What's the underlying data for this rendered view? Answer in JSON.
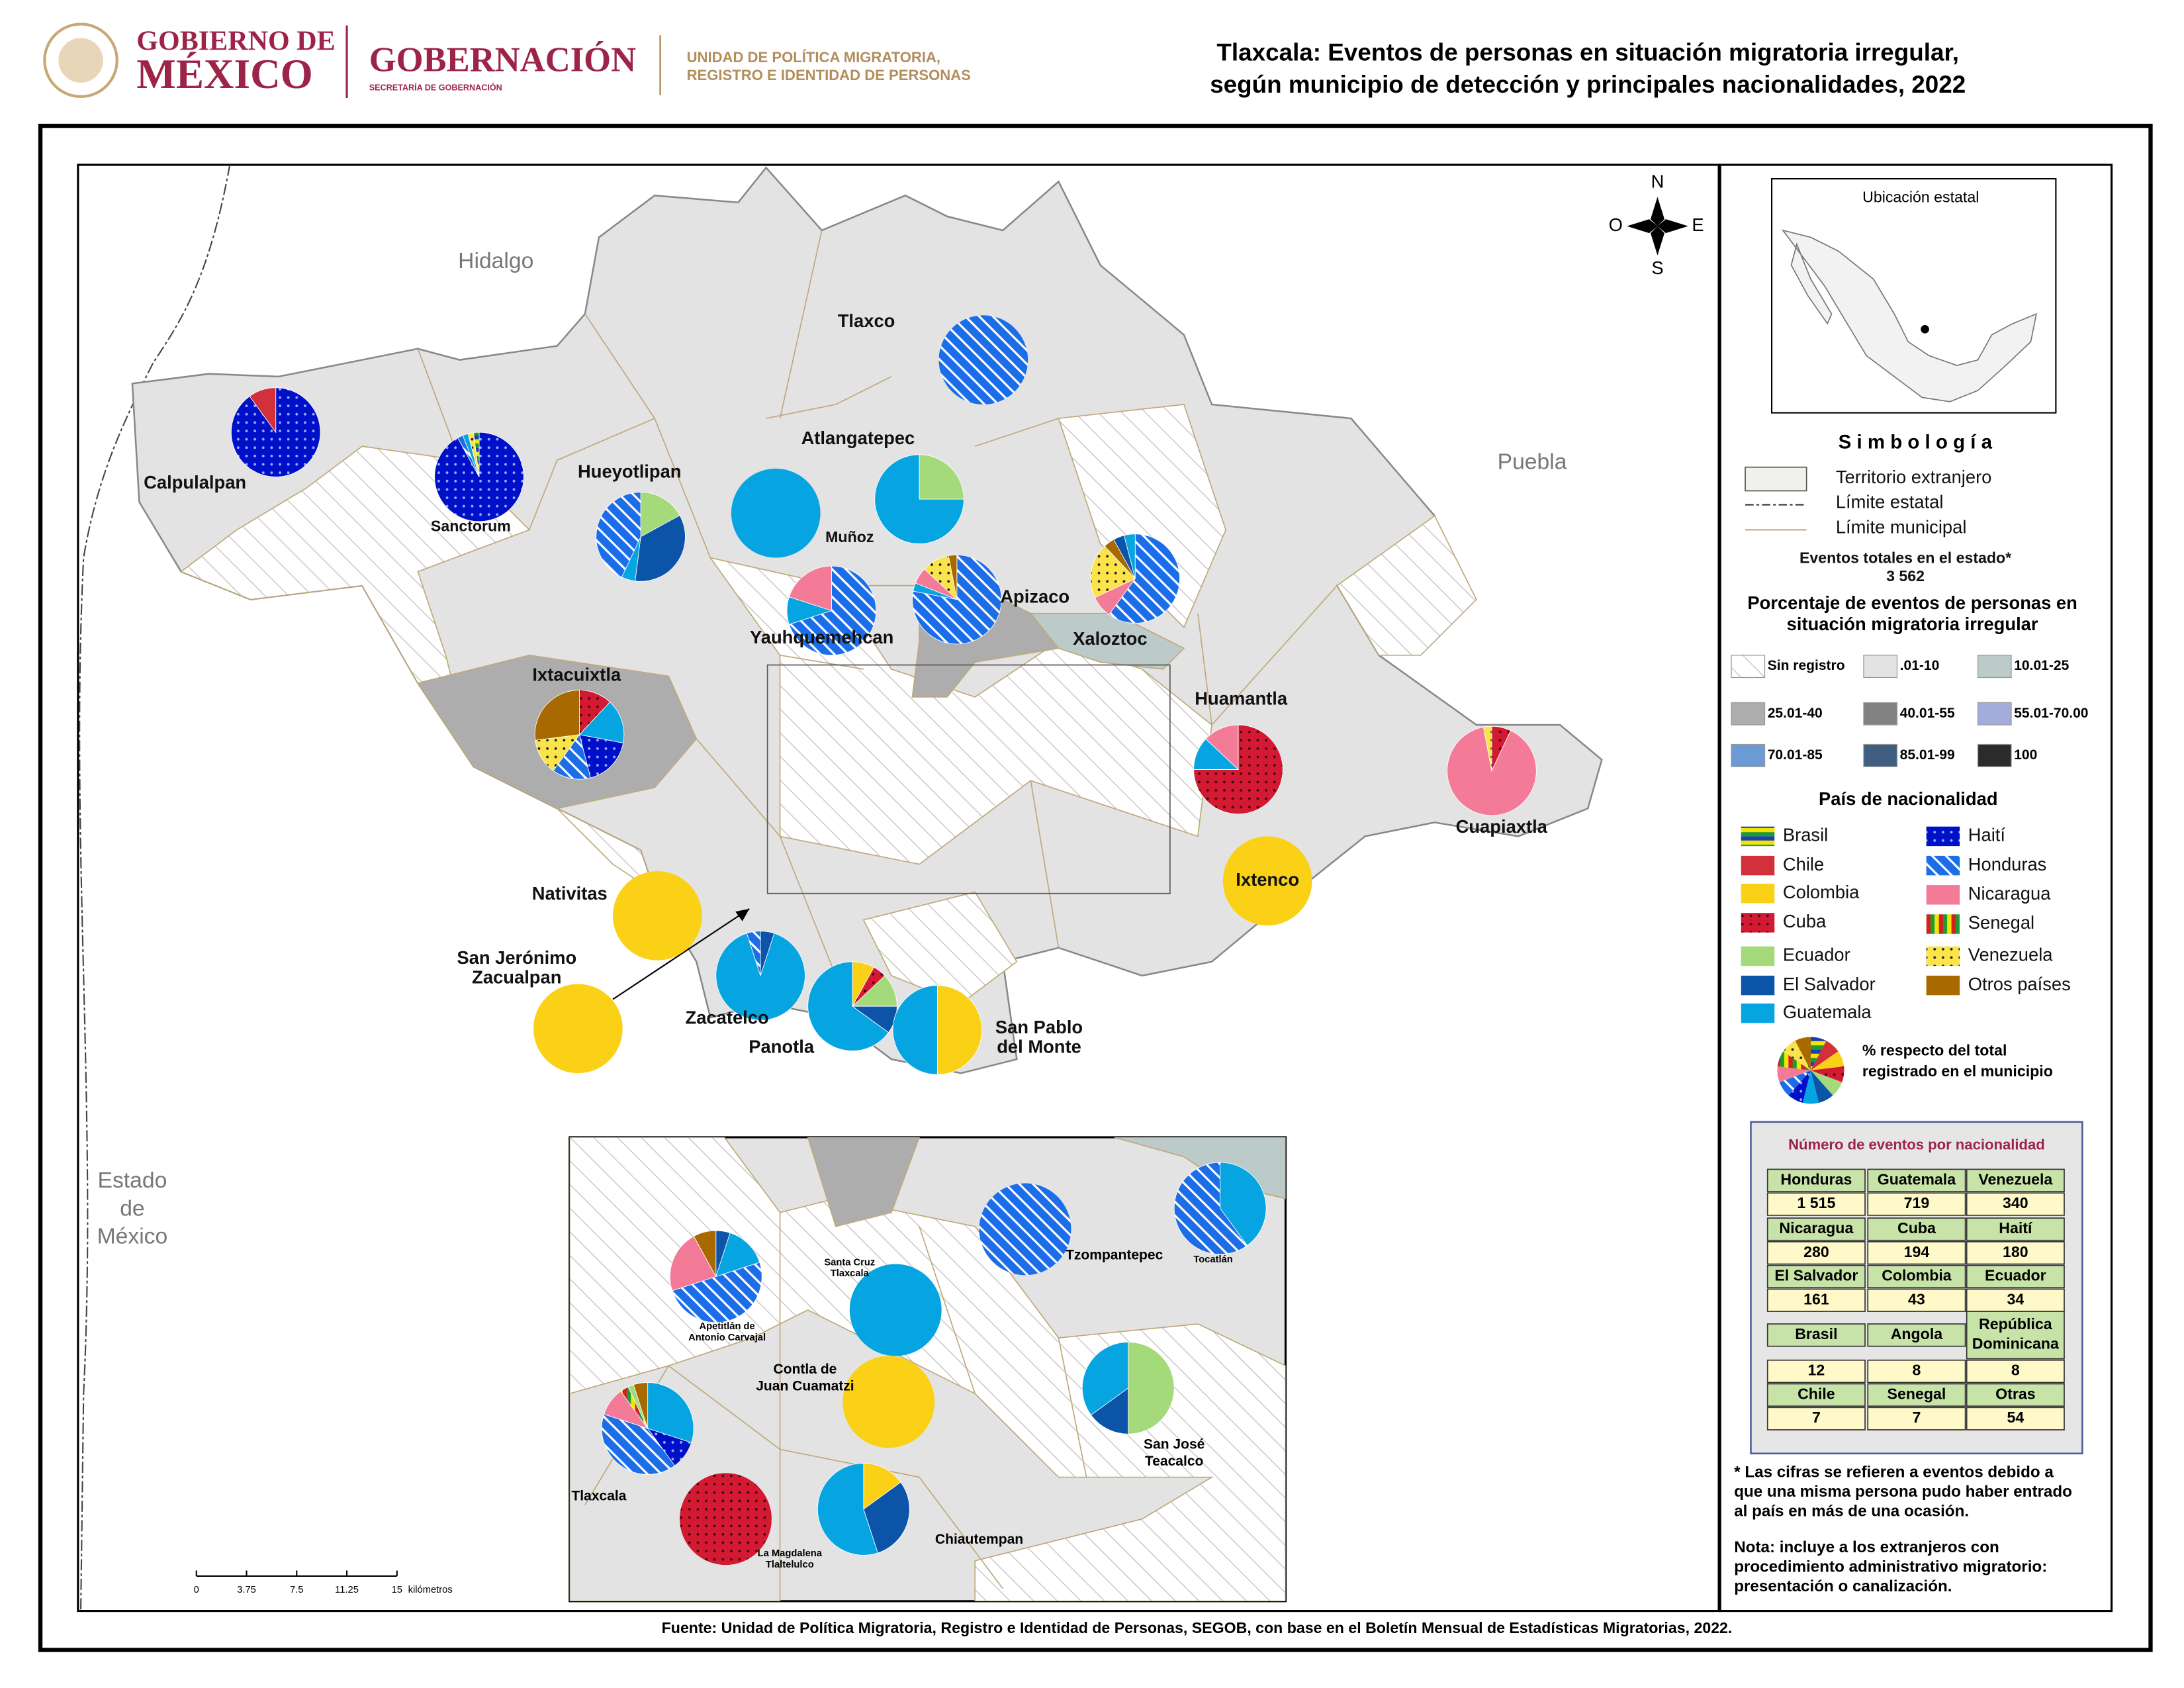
{
  "header": {
    "gov_line1": "GOBIERNO DE",
    "gov_line2": "MÉXICO",
    "ministry": "GOBERNACIÓN",
    "ministry_sub": "SECRETARÍA DE GOBERNACIÓN",
    "unit_lines": [
      "UNIDAD DE POLÍTICA MIGRATORIA,",
      "REGISTRO E IDENTIDAD DE PERSONAS"
    ],
    "title_lines": [
      "Tlaxcala: Eventos de personas en situación migratoria irregular,",
      "según municipio de detección y principales nacionalidades, 2022"
    ]
  },
  "map": {
    "states": [
      "Hidalgo",
      "Puebla",
      [
        "Estado",
        "de",
        "México"
      ]
    ],
    "compass": {
      "n": "N",
      "s": "S",
      "e": "E",
      "o": "O"
    },
    "scale_bar": {
      "ticks": [
        0,
        3.75,
        7.5,
        11.25,
        15
      ],
      "unit": "kilómetros"
    },
    "municipalities": [
      {
        "name": "Calpulalpan",
        "slices": [
          {
            "nationality": "Haití",
            "value": 90
          },
          {
            "nationality": "Chile",
            "value": 10
          }
        ]
      },
      {
        "name": "Sanctorum",
        "slices": [
          {
            "nationality": "Haití",
            "value": 92
          },
          {
            "nationality": "Honduras",
            "value": 2
          },
          {
            "nationality": "Guatemala",
            "value": 2
          },
          {
            "nationality": "Venezuela",
            "value": 2
          },
          {
            "nationality": "Brasil",
            "value": 2
          }
        ]
      },
      {
        "name": "Hueyotlipan",
        "slices": [
          {
            "nationality": "Ecuador",
            "value": 17
          },
          {
            "nationality": "El Salvador",
            "value": 35
          },
          {
            "nationality": "Guatemala",
            "value": 5
          },
          {
            "nationality": "Honduras",
            "value": 43
          }
        ]
      },
      {
        "name": "Tlaxco",
        "slices": [
          {
            "nationality": "Honduras",
            "value": 100
          }
        ]
      },
      {
        "name": "Atlangatepec",
        "slices": [
          {
            "nationality": "Ecuador",
            "value": 25
          },
          {
            "nationality": "Guatemala",
            "value": 75
          }
        ]
      },
      {
        "name": "Muñoz",
        "slices": [
          {
            "nationality": "Guatemala",
            "value": 100
          }
        ]
      },
      {
        "name": "Yauhquemehcan",
        "slices": [
          {
            "nationality": "Honduras",
            "value": 70
          },
          {
            "nationality": "Guatemala",
            "value": 10
          },
          {
            "nationality": "Nicaragua",
            "value": 20
          }
        ]
      },
      {
        "name": "Apizaco",
        "slices": [
          {
            "nationality": "Honduras",
            "value": 78
          },
          {
            "nationality": "Guatemala",
            "value": 3
          },
          {
            "nationality": "Nicaragua",
            "value": 6
          },
          {
            "nationality": "Venezuela",
            "value": 10
          },
          {
            "nationality": "Otros países",
            "value": 3
          }
        ]
      },
      {
        "name": "Xaloztoc",
        "slices": [
          {
            "nationality": "Honduras",
            "value": 60
          },
          {
            "nationality": "Nicaragua",
            "value": 8
          },
          {
            "nationality": "Venezuela",
            "value": 20
          },
          {
            "nationality": "Otros países",
            "value": 4
          },
          {
            "nationality": "El Salvador",
            "value": 4
          },
          {
            "nationality": "Guatemala",
            "value": 4
          }
        ]
      },
      {
        "name": "Ixtacuixtla",
        "slices": [
          {
            "nationality": "Cuba",
            "value": 12
          },
          {
            "nationality": "Guatemala",
            "value": 16
          },
          {
            "nationality": "Haití",
            "value": 18
          },
          {
            "nationality": "Honduras",
            "value": 14
          },
          {
            "nationality": "Venezuela",
            "value": 13
          },
          {
            "nationality": "Otros países",
            "value": 27
          }
        ]
      },
      {
        "name": "Huamantla",
        "slices": [
          {
            "nationality": "Cuba",
            "value": 75
          },
          {
            "nationality": "Guatemala",
            "value": 12
          },
          {
            "nationality": "Nicaragua",
            "value": 13
          }
        ]
      },
      {
        "name": "Cuapiaxtla",
        "slices": [
          {
            "nationality": "Cuba",
            "value": 7
          },
          {
            "nationality": "Nicaragua",
            "value": 90
          },
          {
            "nationality": "Venezuela",
            "value": 3
          }
        ]
      },
      {
        "name": "Ixtenco",
        "slices": [
          {
            "nationality": "Colombia",
            "value": 100
          }
        ]
      },
      {
        "name": "Nativitas",
        "slices": [
          {
            "nationality": "Colombia",
            "value": 100
          }
        ]
      },
      {
        "name": [
          "San Jerónimo",
          "Zacualpan"
        ],
        "slices": [
          {
            "nationality": "Colombia",
            "value": 100
          }
        ]
      },
      {
        "name": "Zacatelco",
        "slices": [
          {
            "nationality": "El Salvador",
            "value": 5
          },
          {
            "nationality": "Guatemala",
            "value": 90
          },
          {
            "nationality": "Honduras",
            "value": 5
          }
        ]
      },
      {
        "name": "Panotla",
        "slices": [
          {
            "nationality": "Colombia",
            "value": 8
          },
          {
            "nationality": "Cuba",
            "value": 5
          },
          {
            "nationality": "Ecuador",
            "value": 12
          },
          {
            "nationality": "El Salvador",
            "value": 10
          },
          {
            "nationality": "Guatemala",
            "value": 65
          }
        ]
      },
      {
        "name": [
          "San Pablo",
          "del Monte"
        ],
        "slices": [
          {
            "nationality": "Colombia",
            "value": 50
          },
          {
            "nationality": "Guatemala",
            "value": 50
          }
        ]
      }
    ],
    "inset_municipalities": [
      {
        "name": [
          "Apetitlán de",
          "Antonio Carvajal"
        ],
        "slices": [
          {
            "nationality": "El Salvador",
            "value": 5
          },
          {
            "nationality": "Guatemala",
            "value": 15
          },
          {
            "nationality": "Honduras",
            "value": 50
          },
          {
            "nationality": "Nicaragua",
            "value": 22
          },
          {
            "nationality": "Otros países",
            "value": 8
          }
        ]
      },
      {
        "name": [
          "Santa Cruz",
          "Tlaxcala"
        ],
        "slices": [
          {
            "nationality": "Guatemala",
            "value": 100
          }
        ]
      },
      {
        "name": "Tzompantepec",
        "slices": [
          {
            "nationality": "Honduras",
            "value": 100
          }
        ]
      },
      {
        "name": "Tocatlán",
        "slices": [
          {
            "nationality": "Guatemala",
            "value": 40
          },
          {
            "nationality": "Honduras",
            "value": 60
          }
        ]
      },
      {
        "name": [
          "Contla de",
          "Juan Cuamatzi"
        ],
        "slices": [
          {
            "nationality": "Colombia",
            "value": 100
          }
        ]
      },
      {
        "name": [
          "San José",
          "Teacalco"
        ],
        "slices": [
          {
            "nationality": "Ecuador",
            "value": 50
          },
          {
            "nationality": "El Salvador",
            "value": 15
          },
          {
            "nationality": "Guatemala",
            "value": 35
          }
        ]
      },
      {
        "name": "Tlaxcala",
        "slices": [
          {
            "nationality": "Guatemala",
            "value": 30
          },
          {
            "nationality": "Haití",
            "value": 10
          },
          {
            "nationality": "Honduras",
            "value": 40
          },
          {
            "nationality": "Nicaragua",
            "value": 10
          },
          {
            "nationality": "Senegal",
            "value": 3
          },
          {
            "nationality": "Ecuador",
            "value": 2
          },
          {
            "nationality": "Otros países",
            "value": 5
          }
        ]
      },
      {
        "name": [
          "La Magdalena",
          "Tlaltelulco"
        ],
        "slices": [
          {
            "nationality": "Cuba",
            "value": 100
          }
        ]
      },
      {
        "name": "Chiautempan",
        "slices": [
          {
            "nationality": "Colombia",
            "value": 15
          },
          {
            "nationality": "El Salvador",
            "value": 30
          },
          {
            "nationality": "Guatemala",
            "value": 55
          }
        ]
      }
    ]
  },
  "legend": {
    "location_title": "Ubicación estatal",
    "symbology_title": "S i m b o l o g í a",
    "symbols": [
      "Territorio extranjero",
      "Límite estatal",
      "Límite municipal"
    ],
    "total_label": "Eventos totales en el estado*",
    "total_value": "3 562",
    "percent_title": [
      "Porcentaje de eventos de personas en",
      "situación migratoria irregular"
    ],
    "classes": [
      {
        "label": "Sin registro",
        "color": "#ffffff",
        "pattern": "hatch"
      },
      {
        "label": ".01-10",
        "color": "#e3e3e3"
      },
      {
        "label": "10.01-25",
        "color": "#bccaca"
      },
      {
        "label": "25.01-40",
        "color": "#adadad"
      },
      {
        "label": "40.01-55",
        "color": "#828282"
      },
      {
        "label": "55.01-70.00",
        "color": "#a4acdc"
      },
      {
        "label": "70.01-85",
        "color": "#6b9ad4"
      },
      {
        "label": "85.01-99",
        "color": "#3f5e80"
      },
      {
        "label": "100",
        "color": "#2b2b2b"
      }
    ],
    "nationality_title": "País de nacionalidad",
    "nationalities": [
      {
        "name": "Brasil",
        "color": "#f2e600",
        "pattern": "hbands",
        "colors": [
          "#f2e600",
          "#1f9a2d",
          "#1b3fae"
        ]
      },
      {
        "name": "Chile",
        "color": "#d2303a"
      },
      {
        "name": "Colombia",
        "color": "#fbd118"
      },
      {
        "name": "Cuba",
        "color": "#d41a32",
        "pattern": "dots",
        "mark_color": "#3a0a10"
      },
      {
        "name": "Ecuador",
        "color": "#a4da7a"
      },
      {
        "name": "El Salvador",
        "color": "#0b54a8"
      },
      {
        "name": "Guatemala",
        "color": "#06a5e2"
      },
      {
        "name": "Haití",
        "color": "#0010c8",
        "pattern": "dots",
        "mark_color": "#9ab0ff"
      },
      {
        "name": "Honduras",
        "color": "#1c6de8",
        "pattern": "stripes",
        "mark_color": "#ffffff"
      },
      {
        "name": "Nicaragua",
        "color": "#f47b98"
      },
      {
        "name": "Senegal",
        "color": "#f2e600",
        "pattern": "vbands",
        "colors": [
          "#1f9a2d",
          "#f2e600",
          "#d42020"
        ]
      },
      {
        "name": "Venezuela",
        "color": "#fbe34a",
        "pattern": "dots",
        "mark_color": "#222222"
      },
      {
        "name": "Otros países",
        "color": "#a86a00"
      }
    ],
    "pie_note": [
      "% respecto del total",
      "registrado en el municipio"
    ]
  },
  "table": {
    "title": "Número de eventos por nacionalidad",
    "rows": [
      [
        {
          "name": "Honduras",
          "value": "1 515"
        },
        {
          "name": "Guatemala",
          "value": "719"
        },
        {
          "name": "Venezuela",
          "value": "340"
        }
      ],
      [
        {
          "name": "Nicaragua",
          "value": "280"
        },
        {
          "name": "Cuba",
          "value": "194"
        },
        {
          "name": "Haití",
          "value": "180"
        }
      ],
      [
        {
          "name": "El Salvador",
          "value": "161"
        },
        {
          "name": "Colombia",
          "value": "43"
        },
        {
          "name": "Ecuador",
          "value": "34"
        }
      ],
      [
        {
          "name": "Brasil",
          "value": "12"
        },
        {
          "name": "Angola",
          "value": "8"
        },
        {
          "name": [
            "República",
            "Dominicana"
          ],
          "value": "8"
        }
      ],
      [
        {
          "name": "Chile",
          "value": "7"
        },
        {
          "name": "Senegal",
          "value": "7"
        },
        {
          "name": "Otras",
          "value": "54"
        }
      ]
    ]
  },
  "notes": {
    "footnote": [
      "* Las cifras se refieren a eventos debido a",
      "que una misma persona pudo haber entrado",
      "al país en más de una ocasión."
    ],
    "nota": [
      "Nota: incluye a los extranjeros con",
      "procedimiento administrativo migratorio:",
      "presentación o canalización."
    ]
  },
  "source": "Fuente: Unidad de Política Migratoria, Registro e Identidad de Personas, SEGOB, con base en el Boletín Mensual de Estadísticas Migratorias, 2022."
}
